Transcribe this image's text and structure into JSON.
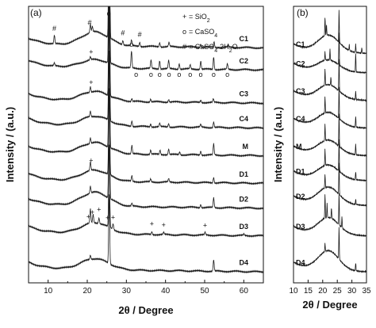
{
  "chart_data": [
    {
      "type": "line",
      "panel_label": "(a)",
      "xlabel": "2θ / Degree",
      "ylabel": "Intensity / (a.u.)",
      "xlim": [
        5,
        65
      ],
      "x_ticks": [
        10,
        20,
        30,
        40,
        50,
        60
      ],
      "y_ticks_shown": false,
      "legend": {
        "placement": "top-right",
        "entries": [
          {
            "marker": "+",
            "label": "= SiO2"
          },
          {
            "marker": "o",
            "label": "= CaSO4"
          },
          {
            "marker": "#",
            "label": "= CaSO4·2H2O"
          }
        ]
      },
      "series": [
        {
          "name": "C1",
          "baseline": 0.86,
          "hump": 0.05,
          "peaks": [
            [
              11.6,
              0.03
            ],
            [
              20.8,
              0.03
            ],
            [
              21.3,
              0.02
            ],
            [
              25.6,
              0.95
            ],
            [
              29.1,
              0.015
            ],
            [
              31.3,
              0.02
            ],
            [
              33.4,
              0.015
            ],
            [
              38.5,
              0.015
            ],
            [
              40.9,
              0.015
            ],
            [
              49.0,
              0.012
            ],
            [
              52.4,
              0.02
            ],
            [
              56.0,
              0.01
            ]
          ]
        },
        {
          "name": "C2",
          "baseline": 0.78,
          "hump": 0.03,
          "peaks": [
            [
              11.6,
              0.01
            ],
            [
              20.8,
              0.01
            ],
            [
              25.6,
              0.85
            ],
            [
              31.3,
              0.06
            ],
            [
              36.3,
              0.03
            ],
            [
              38.5,
              0.03
            ],
            [
              40.8,
              0.03
            ],
            [
              43.5,
              0.02
            ],
            [
              46.3,
              0.015
            ],
            [
              49.0,
              0.03
            ],
            [
              52.3,
              0.045
            ],
            [
              55.8,
              0.02
            ]
          ]
        },
        {
          "name": "C3",
          "baseline": 0.66,
          "hump": 0.035,
          "peaks": [
            [
              20.8,
              0.02
            ],
            [
              25.6,
              0.6
            ],
            [
              31.4,
              0.01
            ],
            [
              36.2,
              0.01
            ],
            [
              40.8,
              0.01
            ],
            [
              49.0,
              0.008
            ],
            [
              52.2,
              0.012
            ]
          ]
        },
        {
          "name": "C4",
          "baseline": 0.57,
          "hump": 0.035,
          "peaks": [
            [
              20.8,
              0.02
            ],
            [
              25.6,
              0.55
            ],
            [
              31.4,
              0.02
            ],
            [
              36.2,
              0.01
            ],
            [
              38.5,
              0.012
            ],
            [
              40.8,
              0.012
            ],
            [
              49.0,
              0.01
            ],
            [
              52.3,
              0.02
            ]
          ]
        },
        {
          "name": "M",
          "baseline": 0.47,
          "hump": 0.04,
          "peaks": [
            [
              20.8,
              0.02
            ],
            [
              25.6,
              0.5
            ],
            [
              31.4,
              0.03
            ],
            [
              36.2,
              0.015
            ],
            [
              38.6,
              0.015
            ],
            [
              40.8,
              0.02
            ],
            [
              43.6,
              0.01
            ],
            [
              49.0,
              0.015
            ],
            [
              52.3,
              0.04
            ]
          ]
        },
        {
          "name": "D1",
          "baseline": 0.37,
          "hump": 0.04,
          "peaks": [
            [
              20.8,
              0.03
            ],
            [
              25.6,
              0.45
            ],
            [
              31.4,
              0.02
            ],
            [
              36.2,
              0.01
            ],
            [
              40.8,
              0.012
            ],
            [
              52.3,
              0.02
            ]
          ]
        },
        {
          "name": "D2",
          "baseline": 0.28,
          "hump": 0.05,
          "peaks": [
            [
              20.8,
              0.025
            ],
            [
              25.6,
              0.4
            ],
            [
              31.4,
              0.01
            ],
            [
              49.0,
              0.012
            ],
            [
              52.3,
              0.035
            ]
          ]
        },
        {
          "name": "D3",
          "baseline": 0.18,
          "hump": 0.04,
          "peaks": [
            [
              20.8,
              0.05
            ],
            [
              21.5,
              0.03
            ],
            [
              23.0,
              0.02
            ],
            [
              25.6,
              0.3
            ],
            [
              26.6,
              0.02
            ],
            [
              36.5,
              0.01
            ],
            [
              39.5,
              0.008
            ],
            [
              50.1,
              0.01
            ],
            [
              60.0,
              0.006
            ]
          ]
        },
        {
          "name": "D4",
          "baseline": 0.05,
          "hump": 0.04,
          "peaks": [
            [
              20.8,
              0.015
            ],
            [
              25.6,
              0.25
            ],
            [
              52.3,
              0.04
            ]
          ]
        }
      ]
    },
    {
      "type": "line",
      "panel_label": "(b)",
      "xlabel": "2θ / Degree",
      "ylabel": "Intensity / (a.u.)",
      "xlim": [
        10,
        35
      ],
      "x_ticks": [
        10,
        15,
        20,
        25,
        30,
        35
      ],
      "y_ticks_shown": false,
      "series": [
        {
          "name": "C1",
          "baseline": 0.84,
          "hump": 0.06,
          "peaks": [
            [
              20.8,
              0.07
            ],
            [
              21.3,
              0.04
            ],
            [
              25.6,
              0.12
            ],
            [
              29.1,
              0.02
            ],
            [
              31.3,
              0.03
            ],
            [
              33.4,
              0.02
            ]
          ]
        },
        {
          "name": "C2",
          "baseline": 0.77,
          "hump": 0.04,
          "peaks": [
            [
              20.8,
              0.03
            ],
            [
              22.5,
              0.04
            ],
            [
              25.6,
              0.12
            ],
            [
              31.3,
              0.07
            ]
          ]
        },
        {
          "name": "C3",
          "baseline": 0.67,
          "hump": 0.05,
          "peaks": [
            [
              20.8,
              0.06
            ],
            [
              22.8,
              0.03
            ],
            [
              25.6,
              0.12
            ],
            [
              31.3,
              0.03
            ]
          ]
        },
        {
          "name": "C4",
          "baseline": 0.57,
          "hump": 0.05,
          "peaks": [
            [
              20.8,
              0.06
            ],
            [
              25.6,
              0.12
            ],
            [
              31.3,
              0.04
            ]
          ]
        },
        {
          "name": "M",
          "baseline": 0.47,
          "hump": 0.05,
          "peaks": [
            [
              20.8,
              0.06
            ],
            [
              25.6,
              0.12
            ],
            [
              31.3,
              0.04
            ]
          ]
        },
        {
          "name": "D1",
          "baseline": 0.38,
          "hump": 0.05,
          "peaks": [
            [
              20.8,
              0.06
            ],
            [
              25.6,
              0.12
            ],
            [
              31.3,
              0.03
            ]
          ]
        },
        {
          "name": "D2",
          "baseline": 0.29,
          "hump": 0.06,
          "peaks": [
            [
              20.8,
              0.05
            ],
            [
              25.6,
              0.12
            ],
            [
              31.3,
              0.02
            ]
          ]
        },
        {
          "name": "D3",
          "baseline": 0.18,
          "hump": 0.06,
          "peaks": [
            [
              20.8,
              0.09
            ],
            [
              21.5,
              0.05
            ],
            [
              23.0,
              0.04
            ],
            [
              25.6,
              0.12
            ],
            [
              26.6,
              0.04
            ]
          ]
        },
        {
          "name": "D4",
          "baseline": 0.05,
          "hump": 0.07,
          "peaks": [
            [
              20.8,
              0.03
            ],
            [
              25.6,
              0.12
            ],
            [
              31.3,
              0.03
            ]
          ]
        }
      ]
    }
  ],
  "annotations": {
    "panel_a": [
      {
        "symbol": "#",
        "x": 11.6,
        "series": "C1"
      },
      {
        "symbol": "#",
        "x": 20.6,
        "series": "C1"
      },
      {
        "symbol": "#",
        "x": 29.1,
        "series": "C1"
      },
      {
        "symbol": "#",
        "x": 33.4,
        "series": "C1"
      },
      {
        "symbol": "o",
        "x": 25.5,
        "series": "C1",
        "top": true
      },
      {
        "symbol": "+",
        "x": 21.0,
        "series": "C2"
      },
      {
        "symbol": "o",
        "x": 31.3,
        "series": "C2"
      },
      {
        "symbol": "o",
        "x": 32.5,
        "series": "C2",
        "below": true
      },
      {
        "symbol": "o",
        "x": 36.3,
        "series": "C2",
        "below": true
      },
      {
        "symbol": "o",
        "x": 38.5,
        "series": "C2",
        "below": true
      },
      {
        "symbol": "o",
        "x": 40.9,
        "series": "C2",
        "below": true
      },
      {
        "symbol": "o",
        "x": 43.5,
        "series": "C2",
        "below": true
      },
      {
        "symbol": "o",
        "x": 46.3,
        "series": "C2",
        "below": true
      },
      {
        "symbol": "o",
        "x": 49.0,
        "series": "C2",
        "below": true
      },
      {
        "symbol": "o",
        "x": 52.3,
        "series": "C2",
        "below": true
      },
      {
        "symbol": "o",
        "x": 55.8,
        "series": "C2",
        "below": true
      },
      {
        "symbol": "+",
        "x": 21.0,
        "series": "C3"
      },
      {
        "symbol": "+",
        "x": 21.0,
        "series": "D1"
      },
      {
        "symbol": "+",
        "x": 20.3,
        "series": "D3"
      },
      {
        "symbol": "+",
        "x": 21.3,
        "series": "D3"
      },
      {
        "symbol": "+",
        "x": 23.0,
        "series": "D3"
      },
      {
        "symbol": "+",
        "x": 25.2,
        "series": "D3"
      },
      {
        "symbol": "+",
        "x": 26.6,
        "series": "D3"
      },
      {
        "symbol": "+",
        "x": 36.5,
        "series": "D3"
      },
      {
        "symbol": "+",
        "x": 39.5,
        "series": "D3"
      },
      {
        "symbol": "+",
        "x": 50.1,
        "series": "D3"
      }
    ]
  },
  "colors": {
    "line": "#1a1a1a",
    "axis": "#111111",
    "background": "#ffffff"
  }
}
